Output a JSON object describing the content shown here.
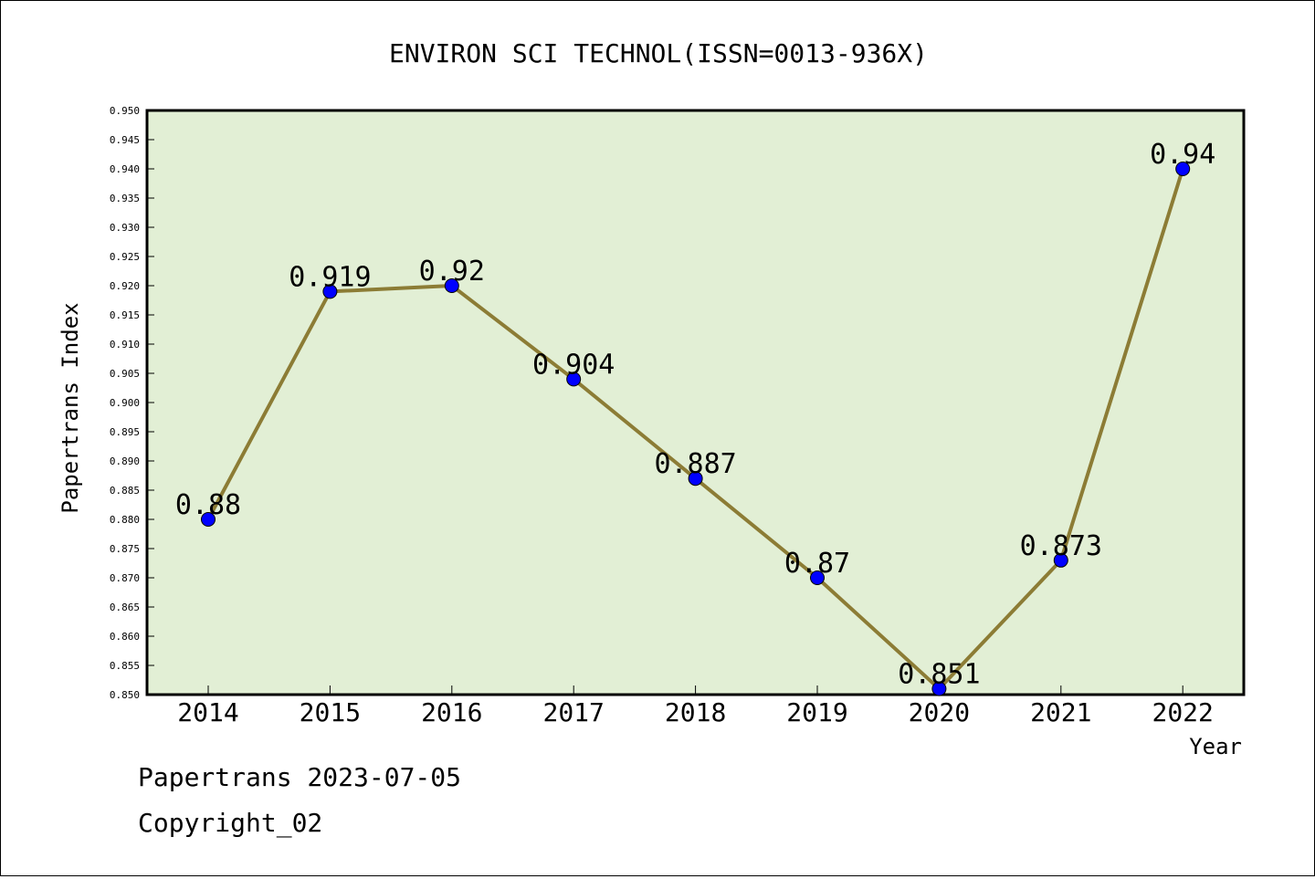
{
  "chart_data": {
    "type": "line",
    "title": "ENVIRON SCI TECHNOL(ISSN=0013-936X)",
    "xlabel": "Year",
    "ylabel": "Papertrans Index",
    "categories": [
      "2014",
      "2015",
      "2016",
      "2017",
      "2018",
      "2019",
      "2020",
      "2021",
      "2022"
    ],
    "series": [
      {
        "values": [
          0.88,
          0.919,
          0.92,
          0.904,
          0.887,
          0.87,
          0.851,
          0.873,
          0.94
        ],
        "labels": [
          "0.88",
          "0.919",
          "0.92",
          "0.904",
          "0.887",
          "0.87",
          "0.851",
          "0.873",
          "0.94"
        ]
      }
    ],
    "ylim": [
      0.85,
      0.95
    ],
    "ytick_step": 0.005,
    "grid": false,
    "legend": "none",
    "plot_background": "#e2efd5",
    "line_color": "#8c7c35",
    "marker_color": "#0000ff"
  },
  "footer": {
    "line1": "Papertrans 2023-07-05",
    "line2": "Copyright_02"
  }
}
